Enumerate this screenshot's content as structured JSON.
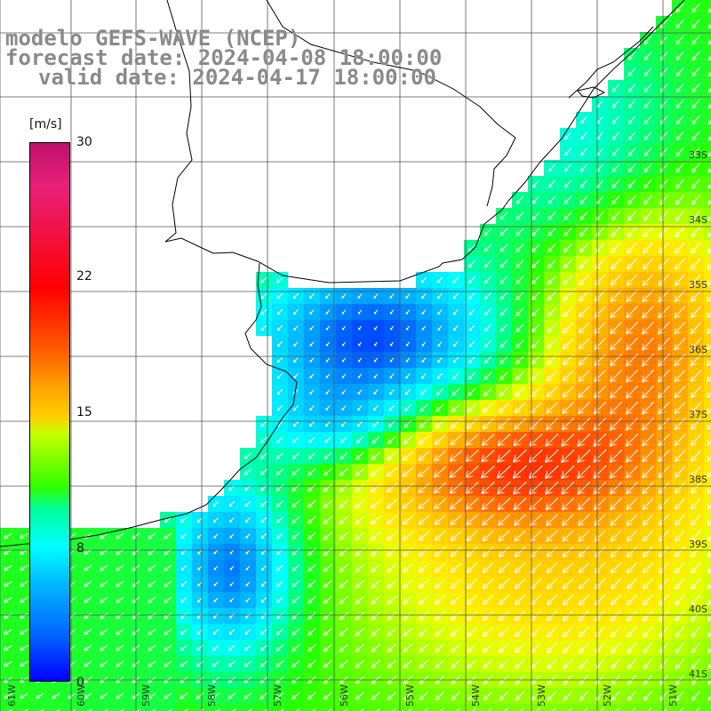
{
  "titles": {
    "model": "modelo GEFS-WAVE (NCEP)",
    "forecast": "forecast date: 2024-04-08 18:00:00",
    "valid": "valid date: 2024-04-17 18:00:00"
  },
  "colorbar": {
    "unit": "[m/s]",
    "ticks": [
      "30",
      "22",
      "15",
      "8",
      "0"
    ],
    "min": 0,
    "max": 30
  },
  "axes": {
    "lat_labels": [
      "33S",
      "34S",
      "35S",
      "36S",
      "37S",
      "38S",
      "39S",
      "40S",
      "41S"
    ],
    "lon_labels": [
      "61W",
      "60W",
      "59W",
      "58W",
      "57W",
      "56W",
      "55W",
      "54W",
      "53W",
      "52W",
      "51W"
    ]
  },
  "colors": {
    "land": "#ffffff",
    "coastline": "#000000",
    "grid": "#555555",
    "title_text": "#8a8a8a",
    "arrows": "#ffffff"
  }
}
